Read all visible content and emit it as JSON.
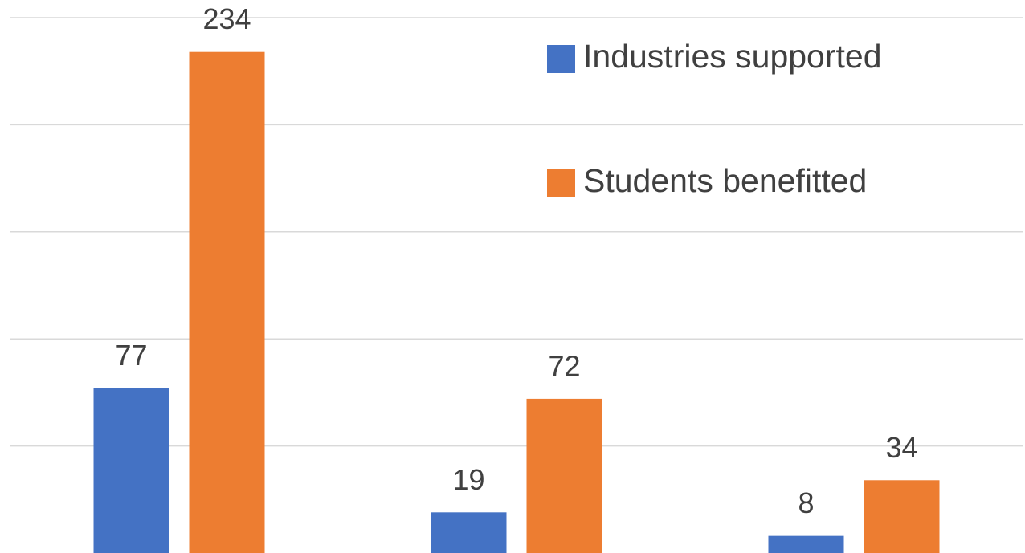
{
  "chart_data": {
    "type": "bar",
    "categories": [
      null,
      null,
      null
    ],
    "series": [
      {
        "name": "Industries supported",
        "color": "#4472c4",
        "values": [
          77,
          19,
          8
        ]
      },
      {
        "name": "Students benefitted",
        "color": "#ed7d31",
        "values": [
          234,
          72,
          34
        ]
      }
    ],
    "ylim": [
      0,
      250
    ],
    "yticks": [
      50,
      100,
      150,
      200,
      250
    ],
    "grid": true,
    "legend": "top-right"
  }
}
